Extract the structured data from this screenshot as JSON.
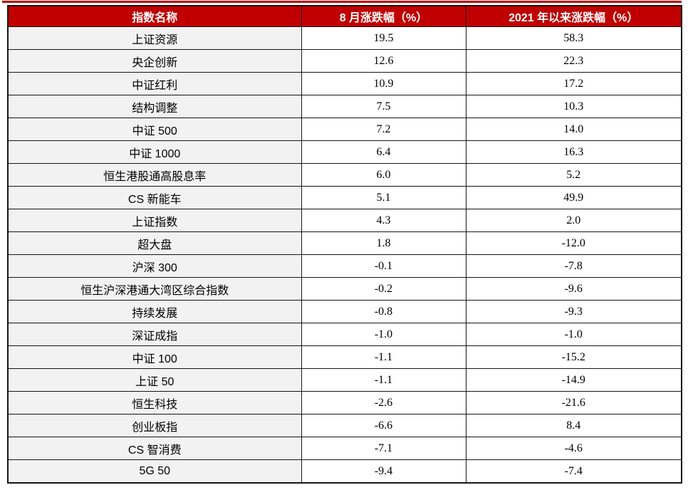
{
  "colors": {
    "header_bg": "#c00000",
    "header_text": "#ffffff",
    "name_column_bg": "#f2f2f2",
    "value_column_bg": "#ffffff",
    "border": "#151515",
    "top_accent_line": "#c00000"
  },
  "table": {
    "headers": [
      "指数名称",
      "8 月涨跌幅（%）",
      "2021 年以来涨跌幅（%）"
    ],
    "rows": [
      {
        "name": "上证资源",
        "aug_change": "19.5",
        "ytd_change": "58.3"
      },
      {
        "name": "央企创新",
        "aug_change": "12.6",
        "ytd_change": "22.3"
      },
      {
        "name": "中证红利",
        "aug_change": "10.9",
        "ytd_change": "17.2"
      },
      {
        "name": "结构调整",
        "aug_change": "7.5",
        "ytd_change": "10.3"
      },
      {
        "name": "中证 500",
        "aug_change": "7.2",
        "ytd_change": "14.0"
      },
      {
        "name": "中证 1000",
        "aug_change": "6.4",
        "ytd_change": "16.3"
      },
      {
        "name": "恒生港股通高股息率",
        "aug_change": "6.0",
        "ytd_change": "5.2"
      },
      {
        "name": "CS 新能车",
        "aug_change": "5.1",
        "ytd_change": "49.9"
      },
      {
        "name": "上证指数",
        "aug_change": "4.3",
        "ytd_change": "2.0"
      },
      {
        "name": "超大盘",
        "aug_change": "1.8",
        "ytd_change": "-12.0"
      },
      {
        "name": "沪深 300",
        "aug_change": "-0.1",
        "ytd_change": "-7.8"
      },
      {
        "name": "恒生沪深港通大湾区综合指数",
        "aug_change": "-0.2",
        "ytd_change": "-9.6"
      },
      {
        "name": "持续发展",
        "aug_change": "-0.8",
        "ytd_change": "-9.3"
      },
      {
        "name": "深证成指",
        "aug_change": "-1.0",
        "ytd_change": "-1.0"
      },
      {
        "name": "中证 100",
        "aug_change": "-1.1",
        "ytd_change": "-15.2"
      },
      {
        "name": "上证 50",
        "aug_change": "-1.1",
        "ytd_change": "-14.9"
      },
      {
        "name": "恒生科技",
        "aug_change": "-2.6",
        "ytd_change": "-21.6"
      },
      {
        "name": "创业板指",
        "aug_change": "-6.6",
        "ytd_change": "8.4"
      },
      {
        "name": "CS 智消费",
        "aug_change": "-7.1",
        "ytd_change": "-4.6"
      },
      {
        "name": "5G 50",
        "aug_change": "-9.4",
        "ytd_change": "-7.4"
      }
    ]
  },
  "chart_data": {
    "type": "table",
    "columns": [
      "指数名称",
      "8 月涨跌幅（%）",
      "2021 年以来涨跌幅（%）"
    ],
    "categories": [
      "上证资源",
      "央企创新",
      "中证红利",
      "结构调整",
      "中证 500",
      "中证 1000",
      "恒生港股通高股息率",
      "CS 新能车",
      "上证指数",
      "超大盘",
      "沪深 300",
      "恒生沪深港通大湾区综合指数",
      "持续发展",
      "深证成指",
      "中证 100",
      "上证 50",
      "恒生科技",
      "创业板指",
      "CS 智消费",
      "5G 50"
    ],
    "series": [
      {
        "name": "8 月涨跌幅（%）",
        "values": [
          19.5,
          12.6,
          10.9,
          7.5,
          7.2,
          6.4,
          6.0,
          5.1,
          4.3,
          1.8,
          -0.1,
          -0.2,
          -0.8,
          -1.0,
          -1.1,
          -1.1,
          -2.6,
          -6.6,
          -7.1,
          -9.4
        ]
      },
      {
        "name": "2021 年以来涨跌幅（%）",
        "values": [
          58.3,
          22.3,
          17.2,
          10.3,
          14.0,
          16.3,
          5.2,
          49.9,
          2.0,
          -12.0,
          -7.8,
          -9.6,
          -9.3,
          -1.0,
          -15.2,
          -14.9,
          -21.6,
          8.4,
          -4.6,
          -7.4
        ]
      }
    ],
    "layout": {
      "header_bg": "#c00000",
      "alternating_rows": false,
      "name_column_shaded": true
    }
  }
}
